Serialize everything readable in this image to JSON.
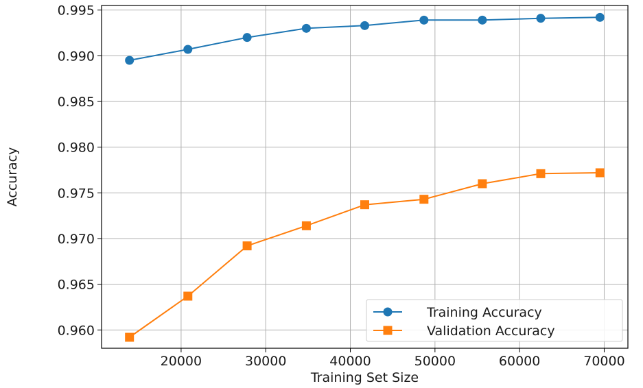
{
  "chart_data": {
    "type": "line",
    "title": "",
    "xlabel": "Training Set Size",
    "ylabel": "Accuracy",
    "xlim": [
      10600,
      72800
    ],
    "ylim": [
      0.958,
      0.9955
    ],
    "xticks": [
      20000,
      30000,
      40000,
      50000,
      60000,
      70000
    ],
    "xtick_labels": [
      "20000",
      "30000",
      "40000",
      "50000",
      "60000",
      "70000"
    ],
    "yticks": [
      0.96,
      0.965,
      0.97,
      0.975,
      0.98,
      0.985,
      0.99,
      0.995
    ],
    "ytick_labels": [
      "0.960",
      "0.965",
      "0.970",
      "0.975",
      "0.980",
      "0.985",
      "0.990",
      "0.995"
    ],
    "grid": true,
    "legend_position": "lower-right",
    "x": [
      13900,
      20800,
      27800,
      34800,
      41700,
      48700,
      55600,
      62500,
      69500
    ],
    "series": [
      {
        "name": "Training Accuracy",
        "color": "#1f77b4",
        "marker": "circle",
        "values": [
          0.9895,
          0.9907,
          0.992,
          0.993,
          0.9933,
          0.9939,
          0.9939,
          0.9941,
          0.9942
        ]
      },
      {
        "name": "Validation Accuracy",
        "color": "#ff7f0e",
        "marker": "square",
        "values": [
          0.9592,
          0.9637,
          0.9692,
          0.9714,
          0.9737,
          0.9743,
          0.976,
          0.9771,
          0.9772
        ]
      }
    ]
  }
}
